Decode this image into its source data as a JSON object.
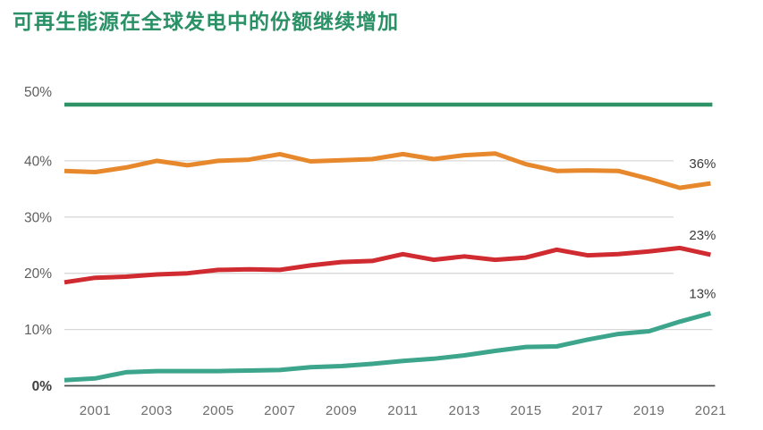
{
  "title": "可再生能源在全球发电中的份额继续增加",
  "colors": {
    "title_green": "#2a9166",
    "benchmark_line_green": "#2e9467",
    "orange_series": "#e6882b",
    "red_series": "#cf2b30",
    "teal_series": "#3ca58c",
    "gridline": "#d8d8d8",
    "zero_axis_line": "#4d4d4d",
    "tick_text": "#6d6d6d",
    "end_label_text": "#3b3b3b"
  },
  "chart_data": {
    "type": "line",
    "x": [
      2000,
      2001,
      2002,
      2003,
      2004,
      2005,
      2006,
      2007,
      2008,
      2009,
      2010,
      2011,
      2012,
      2013,
      2014,
      2015,
      2016,
      2017,
      2018,
      2019,
      2020,
      2021
    ],
    "x_tick_labels": [
      "2001",
      "2003",
      "2005",
      "2007",
      "2009",
      "2011",
      "2013",
      "2015",
      "2017",
      "2019",
      "2021"
    ],
    "x_tick_years": [
      2001,
      2003,
      2005,
      2007,
      2009,
      2011,
      2013,
      2015,
      2017,
      2019,
      2021
    ],
    "y_ticks": [
      {
        "value": 0,
        "label": "0%"
      },
      {
        "value": 10,
        "label": "10%"
      },
      {
        "value": 20,
        "label": "20%"
      },
      {
        "value": 30,
        "label": "30%"
      },
      {
        "value": 40,
        "label": "40%"
      },
      {
        "value": 50,
        "label": "50%"
      }
    ],
    "ylim": [
      0,
      50
    ],
    "grid": "horizontal-only",
    "benchmark_line_value": 50,
    "legend": "none",
    "series": [
      {
        "name": "orange-top-series",
        "color_key": "orange_series",
        "end_label": "36%",
        "values": [
          38.2,
          38.0,
          38.8,
          40.0,
          39.2,
          40.0,
          40.2,
          41.2,
          39.9,
          40.1,
          40.3,
          41.2,
          40.3,
          41.0,
          41.3,
          39.4,
          38.2,
          38.3,
          38.2,
          36.8,
          35.2,
          36.0
        ]
      },
      {
        "name": "red-middle-series",
        "color_key": "red_series",
        "end_label": "23%",
        "values": [
          18.4,
          19.2,
          19.4,
          19.8,
          20.0,
          20.6,
          20.7,
          20.6,
          21.4,
          22.0,
          22.2,
          23.4,
          22.4,
          23.0,
          22.4,
          22.8,
          24.2,
          23.2,
          23.4,
          23.9,
          24.5,
          23.3
        ]
      },
      {
        "name": "teal-bottom-series",
        "color_key": "teal_series",
        "end_label": "13%",
        "values": [
          1.0,
          1.3,
          2.4,
          2.6,
          2.6,
          2.6,
          2.7,
          2.8,
          3.3,
          3.5,
          3.9,
          4.4,
          4.8,
          5.4,
          6.2,
          6.9,
          7.0,
          8.2,
          9.2,
          9.7,
          11.4,
          12.9
        ]
      }
    ]
  }
}
